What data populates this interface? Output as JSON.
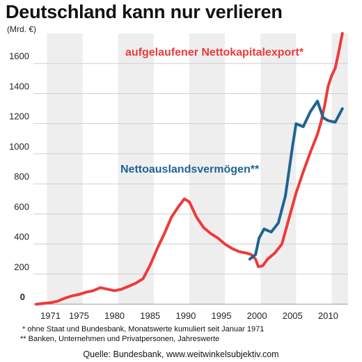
{
  "title": "Deutschland kann nur verlieren",
  "unit": "(Mrd. €)",
  "notes": [
    "* ohne Staat und Bundesbank, Monatswerte kumuliert seit Januar 1971",
    "** Banken, Unternehmen und Privatpersonen, Jahreswerte"
  ],
  "source": "Quelle: Bundesbank, www.weitwinkelsubjektiv.com",
  "colors": {
    "red": "#ee3a3a",
    "blue": "#1f6491",
    "band": "#eeeeee"
  },
  "chart_data": {
    "type": "line",
    "title": "Deutschland kann nur verlieren",
    "ylabel": "(Mrd. €)",
    "xlim": [
      1968.6,
      2012.8
    ],
    "ylim": [
      0,
      1800
    ],
    "yticks": [
      0,
      200,
      400,
      600,
      800,
      1000,
      1200,
      1400,
      1600
    ],
    "ytick_labels": [
      "0",
      "200",
      "400",
      "600",
      "800",
      "1000",
      "1200",
      "1400",
      "1600"
    ],
    "xticks": [
      1971,
      1975,
      1980,
      1985,
      1990,
      1995,
      2000,
      2005,
      2010
    ],
    "xtick_labels": [
      "1971",
      "1975",
      "1980",
      "1985",
      "1990",
      "1995",
      "2000",
      "2005",
      "2010"
    ],
    "grid": true,
    "series": [
      {
        "name": "aufgelaufener Nettokapitalexport*",
        "color": "#ee3a3a",
        "points": [
          [
            1969.0,
            0
          ],
          [
            1970.0,
            5
          ],
          [
            1971.0,
            10
          ],
          [
            1972.0,
            20
          ],
          [
            1973.0,
            40
          ],
          [
            1974.0,
            55
          ],
          [
            1975.0,
            65
          ],
          [
            1976.0,
            80
          ],
          [
            1977.0,
            90
          ],
          [
            1978.0,
            110
          ],
          [
            1979.0,
            100
          ],
          [
            1980.0,
            90
          ],
          [
            1981.0,
            100
          ],
          [
            1982.0,
            120
          ],
          [
            1983.0,
            140
          ],
          [
            1984.0,
            170
          ],
          [
            1985.0,
            260
          ],
          [
            1986.0,
            370
          ],
          [
            1987.0,
            470
          ],
          [
            1988.0,
            580
          ],
          [
            1989.0,
            650
          ],
          [
            1989.8,
            700
          ],
          [
            1990.5,
            680
          ],
          [
            1991.5,
            580
          ],
          [
            1992.5,
            510
          ],
          [
            1993.5,
            470
          ],
          [
            1994.5,
            440
          ],
          [
            1995.5,
            400
          ],
          [
            1996.5,
            370
          ],
          [
            1997.5,
            350
          ],
          [
            1998.5,
            340
          ],
          [
            1999.2,
            330
          ],
          [
            1999.8,
            300
          ],
          [
            2000.2,
            250
          ],
          [
            2000.8,
            255
          ],
          [
            2001.5,
            300
          ],
          [
            2002.5,
            340
          ],
          [
            2003.5,
            400
          ],
          [
            2004.5,
            570
          ],
          [
            2005.5,
            740
          ],
          [
            2006.5,
            880
          ],
          [
            2007.5,
            1010
          ],
          [
            2008.5,
            1130
          ],
          [
            2009.0,
            1210
          ],
          [
            2009.5,
            1320
          ],
          [
            2010.0,
            1450
          ],
          [
            2010.5,
            1520
          ],
          [
            2011.0,
            1570
          ],
          [
            2011.5,
            1680
          ],
          [
            2012.0,
            1800
          ]
        ]
      },
      {
        "name": "Nettoauslandsvermögen**",
        "color": "#1f6491",
        "points": [
          [
            1999.0,
            300
          ],
          [
            1999.8,
            330
          ],
          [
            2000.3,
            440
          ],
          [
            2001.0,
            500
          ],
          [
            2002.0,
            480
          ],
          [
            2003.0,
            540
          ],
          [
            2004.0,
            720
          ],
          [
            2005.0,
            1050
          ],
          [
            2005.5,
            1200
          ],
          [
            2006.5,
            1180
          ],
          [
            2007.5,
            1280
          ],
          [
            2008.5,
            1350
          ],
          [
            2009.3,
            1240
          ],
          [
            2010.0,
            1220
          ],
          [
            2011.0,
            1210
          ],
          [
            2012.0,
            1300
          ]
        ]
      }
    ],
    "annotations": [
      {
        "text": "aufgelaufener Nettokapitalexport*",
        "series": 0
      },
      {
        "text": "Nettoauslandsvermögen**",
        "series": 1
      }
    ]
  }
}
